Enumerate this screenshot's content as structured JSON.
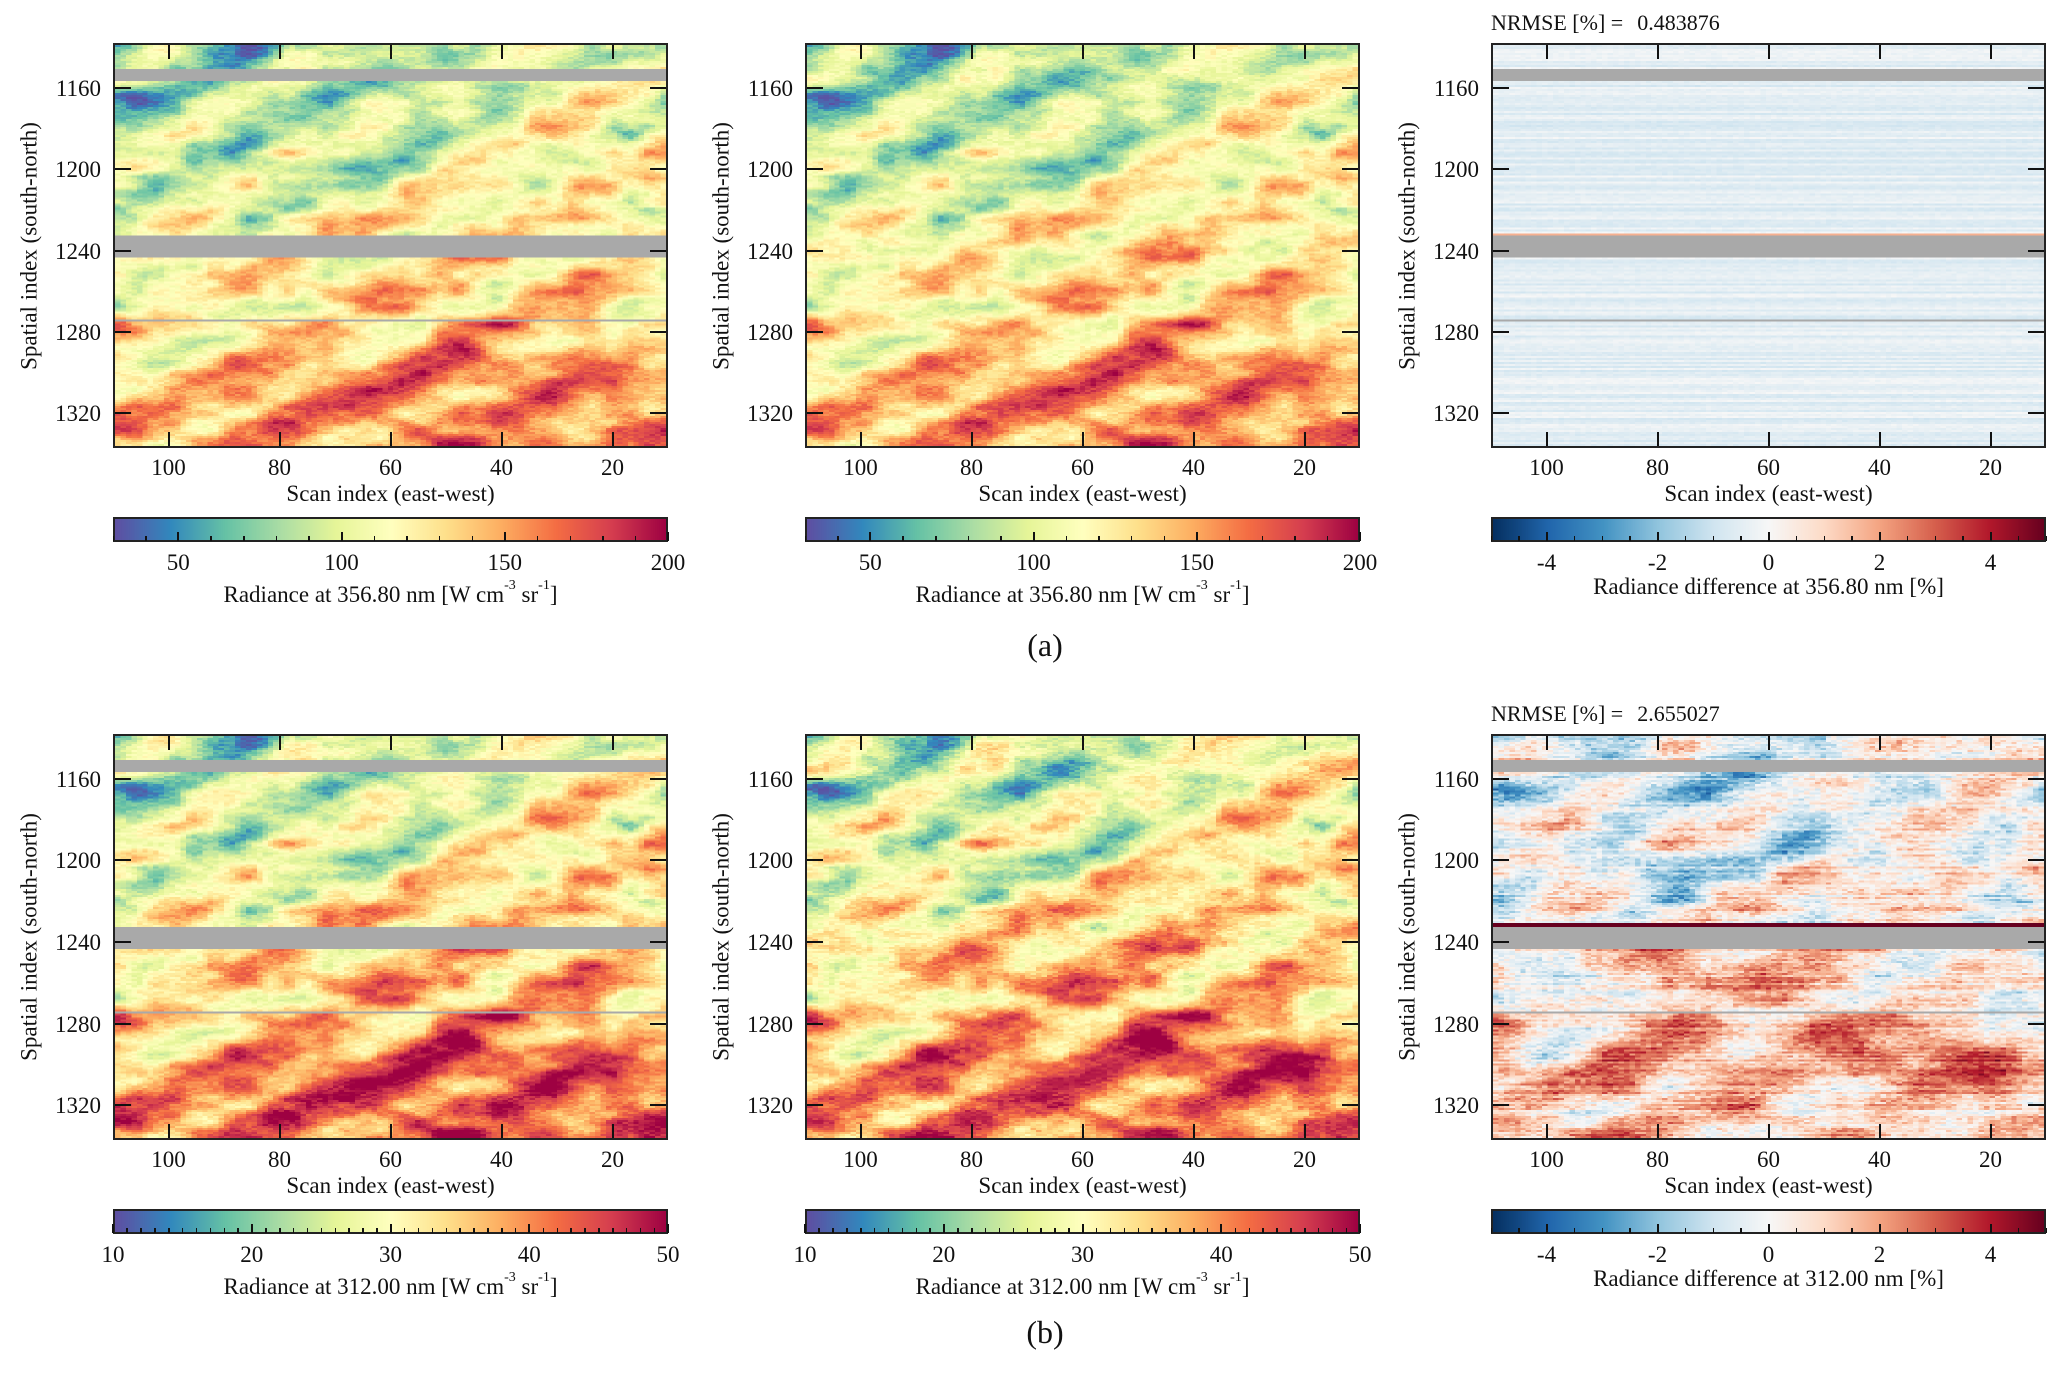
{
  "figure_labels": [
    "(a)",
    "(b)"
  ],
  "colors": {
    "masked_rows": "#a9a9a9",
    "spectral_r": [
      "#5e4fa2",
      "#3288bd",
      "#66c2a5",
      "#abdda4",
      "#e6f598",
      "#ffffbf",
      "#fee08b",
      "#fdae61",
      "#f46d43",
      "#d53e4f",
      "#9e0142"
    ],
    "rdbu_r": [
      "#053061",
      "#2166ac",
      "#4393c3",
      "#92c5de",
      "#d1e5f0",
      "#f7f7f7",
      "#fddbc7",
      "#f4a582",
      "#d6604d",
      "#b2182b",
      "#67001f"
    ]
  },
  "chart_data": [
    {
      "type": "heatmap",
      "row": "a",
      "xlabel": "Scan index (east-west)",
      "ylabel": "Spatial index (south-north)",
      "xlim": [
        110,
        10
      ],
      "ylim": [
        1337,
        1138
      ],
      "xticks": [
        "100",
        "80",
        "60",
        "40",
        "20"
      ],
      "yticks": [
        "1160",
        "1200",
        "1240",
        "1280",
        "1320"
      ],
      "masked_rows": [
        [
          1150,
          1155
        ],
        [
          1233,
          1243
        ],
        [
          1274.5,
          1275.5
        ]
      ],
      "colormap": "spectral_r",
      "colorbar": {
        "range": [
          30,
          200
        ],
        "ticks": [
          "50",
          "100",
          "150",
          "200"
        ],
        "minor_step": 10,
        "label": {
          "text": "Radiance at 356.80 nm [W cm",
          "sup1": "-3",
          "mid": " sr",
          "sup2": "-1",
          "end": "]"
        }
      }
    },
    {
      "type": "heatmap",
      "row": "a",
      "xlabel": "Scan index (east-west)",
      "ylabel": "Spatial index (south-north)",
      "xlim": [
        110,
        10
      ],
      "ylim": [
        1337,
        1138
      ],
      "xticks": [
        "100",
        "80",
        "60",
        "40",
        "20"
      ],
      "yticks": [
        "1160",
        "1200",
        "1240",
        "1280",
        "1320"
      ],
      "masked_rows": [],
      "colormap": "spectral_r",
      "colorbar": {
        "range": [
          30,
          200
        ],
        "ticks": [
          "50",
          "100",
          "150",
          "200"
        ],
        "minor_step": 10,
        "label": {
          "text": "Radiance at 356.80 nm [W cm",
          "sup1": "-3",
          "mid": " sr",
          "sup2": "-1",
          "end": "]"
        }
      }
    },
    {
      "type": "heatmap",
      "row": "a",
      "title_label": "NRMSE [%] =",
      "nrmse": "0.483876",
      "xlabel": "Scan index (east-west)",
      "ylabel": "Spatial index (south-north)",
      "xlim": [
        110,
        10
      ],
      "ylim": [
        1337,
        1138
      ],
      "xticks": [
        "100",
        "80",
        "60",
        "40",
        "20"
      ],
      "yticks": [
        "1160",
        "1200",
        "1240",
        "1280",
        "1320"
      ],
      "masked_rows": [
        [
          1150,
          1155
        ],
        [
          1233,
          1243
        ],
        [
          1274.5,
          1275.5
        ]
      ],
      "colormap": "rdbu_r",
      "colorbar": {
        "range": [
          -5,
          5
        ],
        "ticks": [
          "-4",
          "-2",
          "0",
          "2",
          "4"
        ],
        "minor_step": 0.5,
        "label": {
          "text": "Radiance difference at 356.80 nm [%]"
        }
      }
    },
    {
      "type": "heatmap",
      "row": "b",
      "xlabel": "Scan index (east-west)",
      "ylabel": "Spatial index (south-north)",
      "xlim": [
        110,
        10
      ],
      "ylim": [
        1337,
        1138
      ],
      "xticks": [
        "100",
        "80",
        "60",
        "40",
        "20"
      ],
      "yticks": [
        "1160",
        "1200",
        "1240",
        "1280",
        "1320"
      ],
      "masked_rows": [
        [
          1150,
          1155
        ],
        [
          1233,
          1243
        ],
        [
          1274.5,
          1275.5
        ]
      ],
      "colormap": "spectral_r",
      "colorbar": {
        "range": [
          10,
          50
        ],
        "ticks": [
          "10",
          "20",
          "30",
          "40",
          "50"
        ],
        "minor_step": 1,
        "label": {
          "text": "Radiance at 312.00 nm [W cm",
          "sup1": "-3",
          "mid": " sr",
          "sup2": "-1",
          "end": "]"
        }
      }
    },
    {
      "type": "heatmap",
      "row": "b",
      "xlabel": "Scan index (east-west)",
      "ylabel": "Spatial index (south-north)",
      "xlim": [
        110,
        10
      ],
      "ylim": [
        1337,
        1138
      ],
      "xticks": [
        "100",
        "80",
        "60",
        "40",
        "20"
      ],
      "yticks": [
        "1160",
        "1200",
        "1240",
        "1280",
        "1320"
      ],
      "masked_rows": [],
      "colormap": "spectral_r",
      "colorbar": {
        "range": [
          10,
          50
        ],
        "ticks": [
          "10",
          "20",
          "30",
          "40",
          "50"
        ],
        "minor_step": 1,
        "label": {
          "text": "Radiance at 312.00 nm [W cm",
          "sup1": "-3",
          "mid": " sr",
          "sup2": "-1",
          "end": "]"
        }
      }
    },
    {
      "type": "heatmap",
      "row": "b",
      "title_label": "NRMSE [%] =",
      "nrmse": "2.655027",
      "xlabel": "Scan index (east-west)",
      "ylabel": "Spatial index (south-north)",
      "xlim": [
        110,
        10
      ],
      "ylim": [
        1337,
        1138
      ],
      "xticks": [
        "100",
        "80",
        "60",
        "40",
        "20"
      ],
      "yticks": [
        "1160",
        "1200",
        "1240",
        "1280",
        "1320"
      ],
      "masked_rows": [
        [
          1150,
          1155
        ],
        [
          1233,
          1243
        ],
        [
          1274.5,
          1275.5
        ]
      ],
      "colormap": "rdbu_r",
      "colorbar": {
        "range": [
          -5,
          5
        ],
        "ticks": [
          "-4",
          "-2",
          "0",
          "2",
          "4"
        ],
        "minor_step": 0.5,
        "label": {
          "text": "Radiance difference at 312.00 nm [%]"
        }
      }
    }
  ]
}
